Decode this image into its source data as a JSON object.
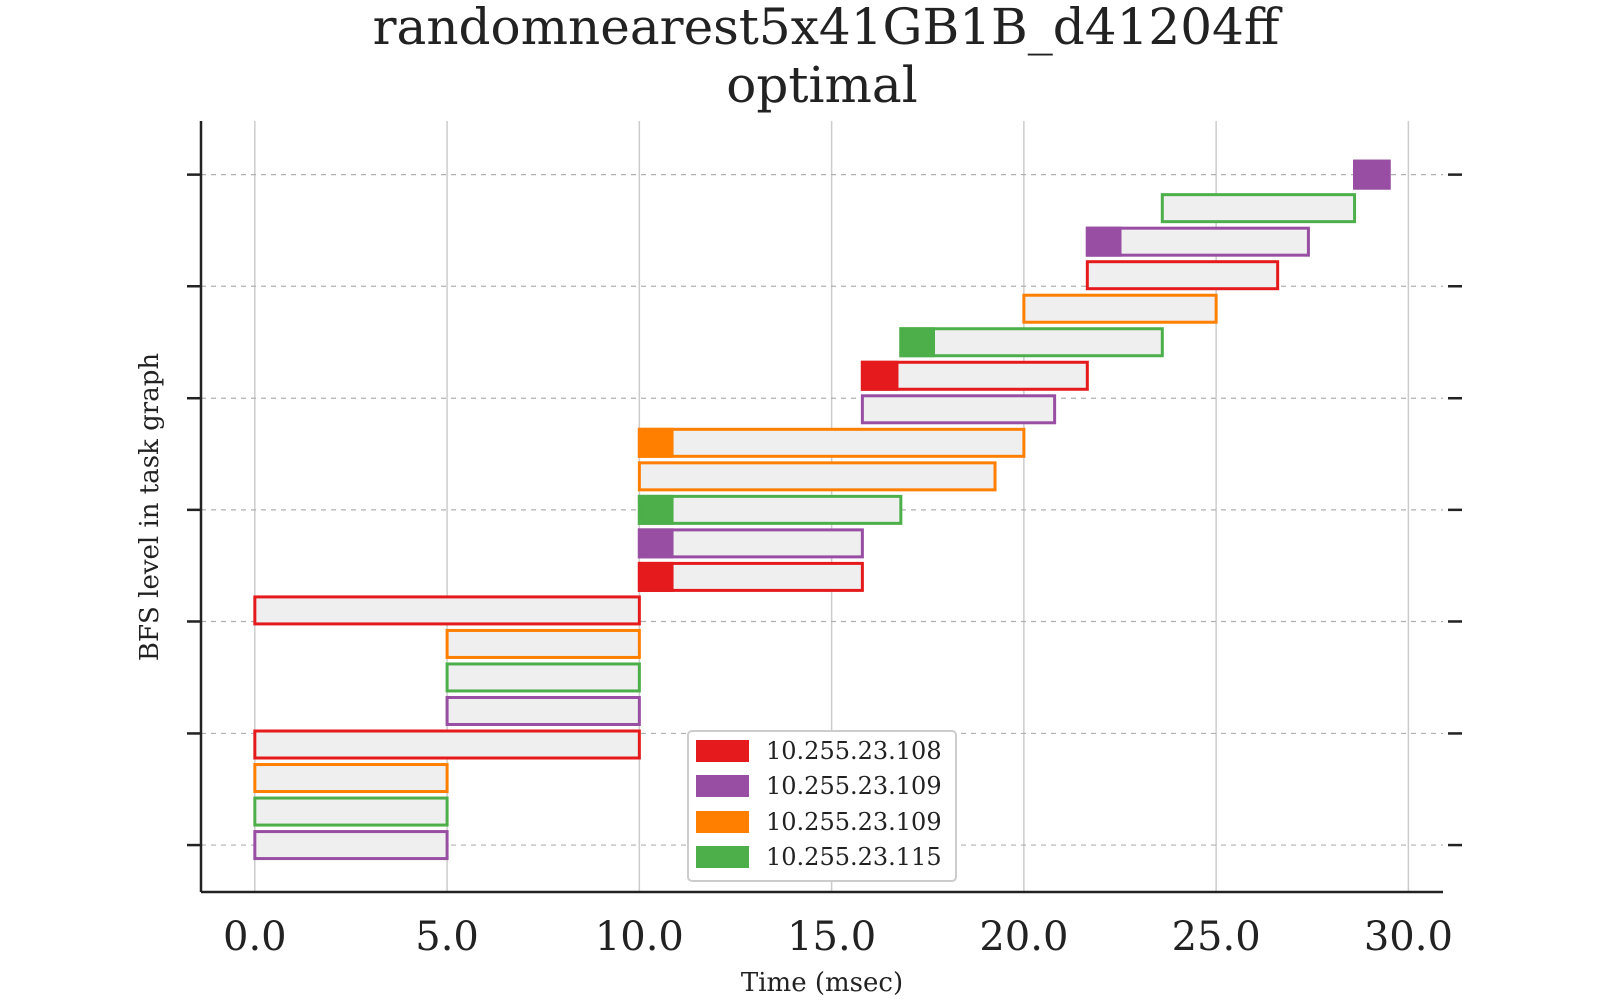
{
  "chart_data": {
    "type": "gantt",
    "title": "randomnearest5x41GB1B_d41204ff",
    "subtitle": "optimal",
    "xlabel": "Time (msec)",
    "ylabel": "BFS level in task graph",
    "xlim": [
      -1.4,
      30.9
    ],
    "ylim": [
      -1.4,
      21.6
    ],
    "xticks": [
      "0.0",
      "5.0",
      "10.0",
      "15.0",
      "20.0",
      "25.0",
      "30.0"
    ],
    "xtick_values": [
      0,
      5,
      10,
      15,
      20,
      25,
      30
    ],
    "ytick_values": [
      0,
      3.33,
      6.67,
      10,
      13.33,
      16.67,
      20
    ],
    "grid": {
      "x": true,
      "y": true
    },
    "legend_position": "bottom-center",
    "bar_fill_color": "#efefef",
    "legend": [
      {
        "label": "10.255.23.108",
        "color": "#e41a1c"
      },
      {
        "label": "10.255.23.109",
        "color": "#984ea3"
      },
      {
        "label": "10.255.23.109",
        "color": "#ff7f00"
      },
      {
        "label": "10.255.23.115",
        "color": "#4daf4a"
      }
    ],
    "tasks": [
      {
        "row": 0,
        "start": 0.0,
        "end": 5.0,
        "series": 1,
        "head": 0
      },
      {
        "row": 1,
        "start": 0.0,
        "end": 5.0,
        "series": 3,
        "head": 0
      },
      {
        "row": 2,
        "start": 0.0,
        "end": 5.0,
        "series": 2,
        "head": 0
      },
      {
        "row": 3,
        "start": 0.0,
        "end": 10.0,
        "series": 0,
        "head": 0
      },
      {
        "row": 4,
        "start": 5.0,
        "end": 10.0,
        "series": 1,
        "head": 0
      },
      {
        "row": 5,
        "start": 5.0,
        "end": 10.0,
        "series": 3,
        "head": 0
      },
      {
        "row": 6,
        "start": 5.0,
        "end": 10.0,
        "series": 2,
        "head": 0
      },
      {
        "row": 7,
        "start": 0.0,
        "end": 10.0,
        "series": 0,
        "head": 0
      },
      {
        "row": 8,
        "start": 10.0,
        "end": 15.8,
        "series": 0,
        "head": 0.85
      },
      {
        "row": 9,
        "start": 10.0,
        "end": 15.8,
        "series": 1,
        "head": 0.85
      },
      {
        "row": 10,
        "start": 10.0,
        "end": 16.8,
        "series": 3,
        "head": 0.85
      },
      {
        "row": 11,
        "start": 10.0,
        "end": 19.25,
        "series": 2,
        "head": 0
      },
      {
        "row": 12,
        "start": 10.0,
        "end": 20.0,
        "series": 2,
        "head": 0.85
      },
      {
        "row": 13,
        "start": 15.8,
        "end": 20.8,
        "series": 1,
        "head": 0
      },
      {
        "row": 14,
        "start": 15.8,
        "end": 21.65,
        "series": 0,
        "head": 0.9
      },
      {
        "row": 15,
        "start": 16.8,
        "end": 23.6,
        "series": 3,
        "head": 0.85
      },
      {
        "row": 16,
        "start": 20.0,
        "end": 25.0,
        "series": 2,
        "head": 0
      },
      {
        "row": 17,
        "start": 21.65,
        "end": 26.6,
        "series": 0,
        "head": 0
      },
      {
        "row": 18,
        "start": 21.65,
        "end": 27.4,
        "series": 1,
        "head": 0.85
      },
      {
        "row": 19,
        "start": 23.6,
        "end": 28.6,
        "series": 3,
        "head": 0
      },
      {
        "row": 20,
        "start": 28.6,
        "end": 29.5,
        "series": 1,
        "head": 0.9
      }
    ]
  }
}
